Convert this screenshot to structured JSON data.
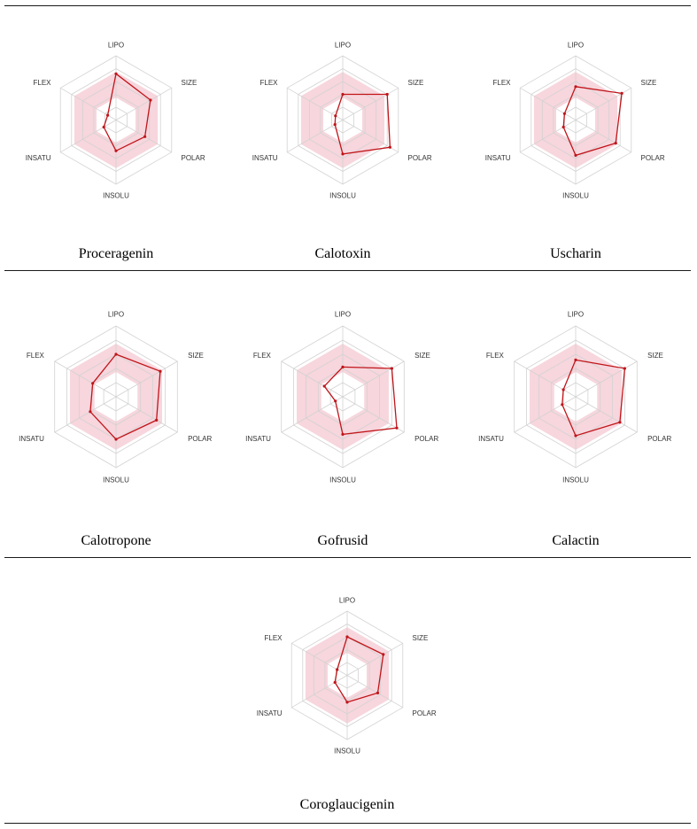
{
  "chart_data": [
    {
      "type": "radar",
      "title": "Proceragenin",
      "axes": [
        "LIPO",
        "SIZE",
        "POLAR",
        "INSOLU",
        "INSATU",
        "FLEX"
      ],
      "optimal_range": [
        0.35,
        0.75
      ],
      "values": [
        0.72,
        0.62,
        0.52,
        0.48,
        0.22,
        0.15
      ],
      "series_color": "#c0151a",
      "band_color": "#f7d6dd"
    },
    {
      "type": "radar",
      "title": "Calotoxin",
      "axes": [
        "LIPO",
        "SIZE",
        "POLAR",
        "INSOLU",
        "INSATU",
        "FLEX"
      ],
      "optimal_range": [
        0.35,
        0.75
      ],
      "values": [
        0.4,
        0.8,
        0.85,
        0.53,
        0.14,
        0.13
      ],
      "series_color": "#c0151a",
      "band_color": "#f7d6dd"
    },
    {
      "type": "radar",
      "title": "Uscharin",
      "axes": [
        "LIPO",
        "SIZE",
        "POLAR",
        "INSOLU",
        "INSATU",
        "FLEX"
      ],
      "optimal_range": [
        0.35,
        0.75
      ],
      "values": [
        0.52,
        0.83,
        0.72,
        0.55,
        0.22,
        0.2
      ],
      "series_color": "#c0151a",
      "band_color": "#f7d6dd"
    },
    {
      "type": "radar",
      "title": "Calotropone",
      "axes": [
        "LIPO",
        "SIZE",
        "POLAR",
        "INSOLU",
        "INSATU",
        "FLEX"
      ],
      "optimal_range": [
        0.35,
        0.75
      ],
      "values": [
        0.6,
        0.72,
        0.66,
        0.6,
        0.42,
        0.38
      ],
      "series_color": "#c0151a",
      "band_color": "#f7d6dd"
    },
    {
      "type": "radar",
      "title": "Gofrusid",
      "axes": [
        "LIPO",
        "SIZE",
        "POLAR",
        "INSOLU",
        "INSATU",
        "FLEX"
      ],
      "optimal_range": [
        0.35,
        0.75
      ],
      "values": [
        0.42,
        0.8,
        0.88,
        0.53,
        0.12,
        0.3
      ],
      "series_color": "#c0151a",
      "band_color": "#f7d6dd"
    },
    {
      "type": "radar",
      "title": "Calactin",
      "axes": [
        "LIPO",
        "SIZE",
        "POLAR",
        "INSOLU",
        "INSATU",
        "FLEX"
      ],
      "optimal_range": [
        0.35,
        0.75
      ],
      "values": [
        0.52,
        0.8,
        0.72,
        0.55,
        0.22,
        0.2
      ],
      "series_color": "#c0151a",
      "band_color": "#f7d6dd"
    },
    {
      "type": "radar",
      "title": "Coroglaucigenin",
      "axes": [
        "LIPO",
        "SIZE",
        "POLAR",
        "INSOLU",
        "INSATU",
        "FLEX"
      ],
      "optimal_range": [
        0.35,
        0.75
      ],
      "values": [
        0.6,
        0.65,
        0.55,
        0.42,
        0.22,
        0.18
      ],
      "series_color": "#c0151a",
      "band_color": "#f7d6dd"
    }
  ]
}
